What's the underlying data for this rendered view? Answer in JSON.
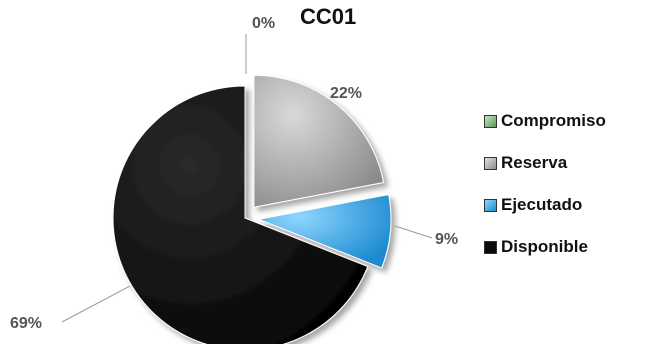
{
  "chart_data": {
    "type": "pie",
    "title": "CC01",
    "slices": [
      {
        "name": "Compromiso",
        "value": 0,
        "label": "0%",
        "color": "#7ab37a"
      },
      {
        "name": "Reserva",
        "value": 22,
        "label": "22%",
        "color": "#a6a6a6"
      },
      {
        "name": "Ejecutado",
        "value": 9,
        "label": "9%",
        "color": "#3aa8e8"
      },
      {
        "name": "Disponible",
        "value": 69,
        "label": "69%",
        "color": "#0a0a0a"
      }
    ],
    "legend_position": "right",
    "exploded": true
  }
}
